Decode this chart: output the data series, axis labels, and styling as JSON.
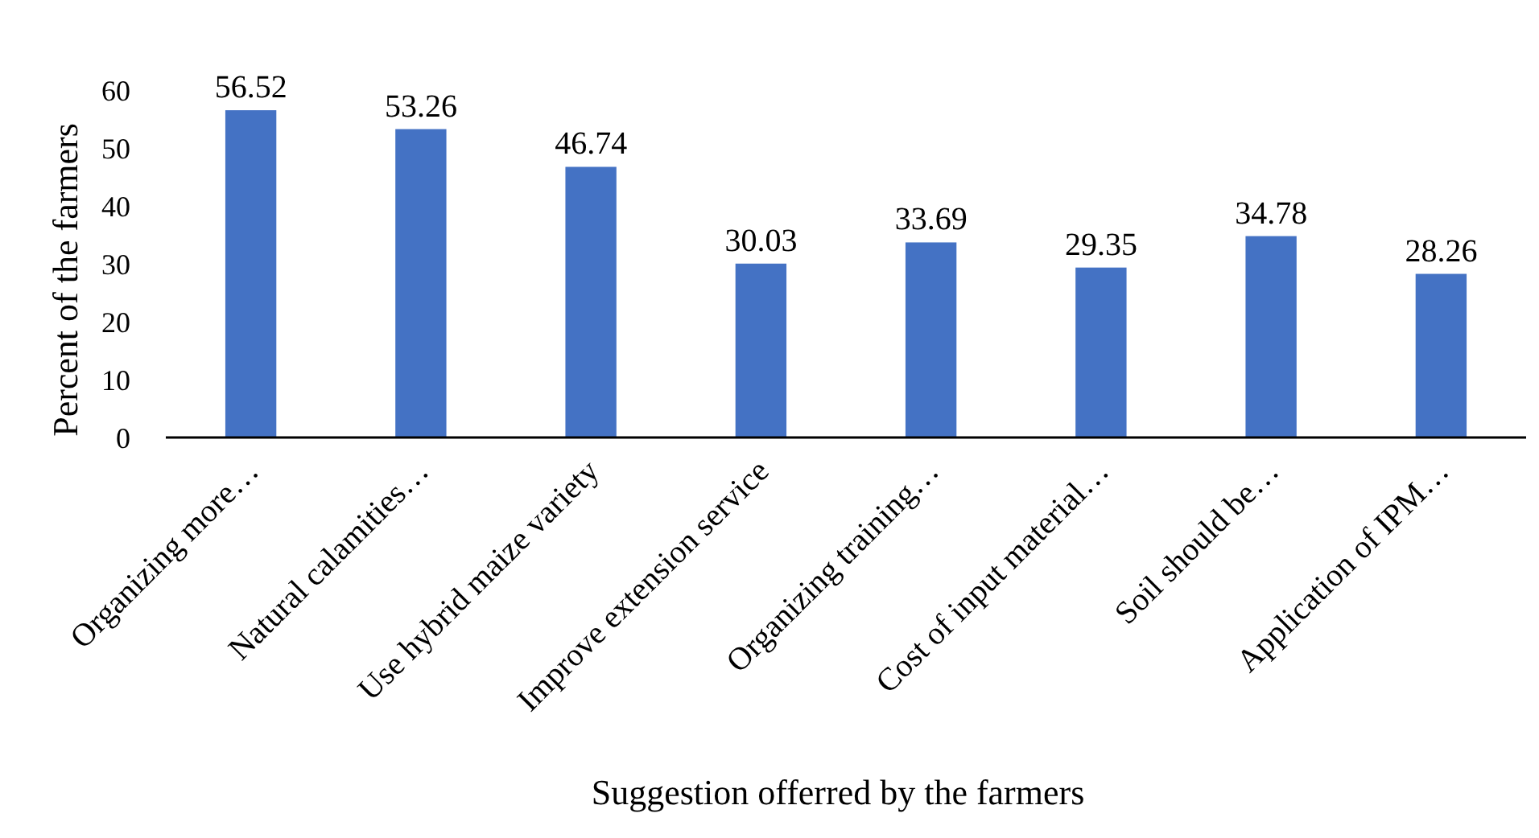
{
  "chart_data": {
    "type": "bar",
    "xlabel": "Suggestion offerred by the farmers",
    "ylabel": "Percent of the farmers",
    "categories": [
      "Organizing more…",
      "Natural calamities…",
      "Use hybrid maize variety",
      "Improve extension service",
      "Organizing training…",
      "Cost of input material…",
      "Soil should be…",
      "Application of IPM…"
    ],
    "values": [
      56.52,
      53.26,
      46.74,
      30.03,
      33.69,
      29.35,
      34.78,
      28.26
    ],
    "color": "#4472c4",
    "ylim": [
      0,
      60
    ],
    "yticks": [
      0,
      10,
      20,
      30,
      40,
      50,
      60
    ],
    "grid": false,
    "data_labels": true
  }
}
